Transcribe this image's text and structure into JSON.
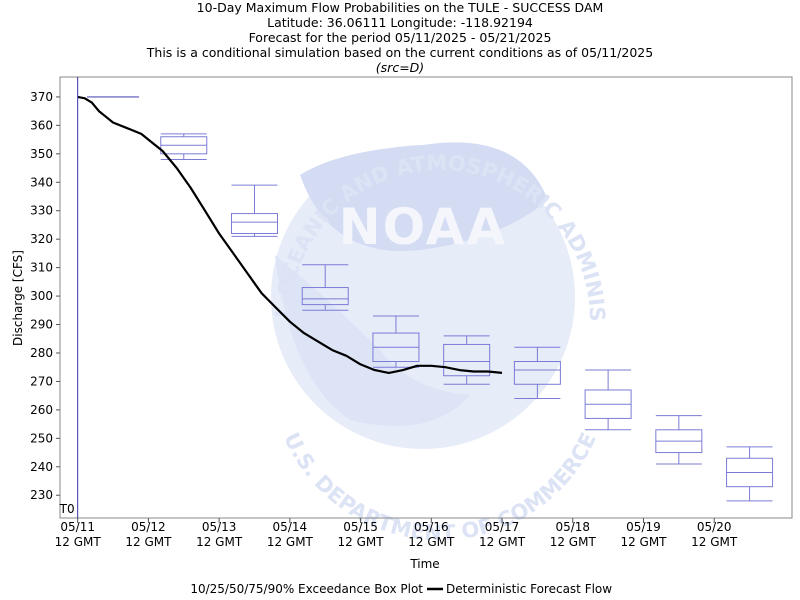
{
  "titles": {
    "line1": "10-Day Maximum Flow Probabilities on the TULE - SUCCESS DAM",
    "line2": "Latitude: 36.06111 Longitude: -118.92194",
    "line3": "Forecast for the period 05/11/2025 - 05/21/2025",
    "line4": "This is a conditional simulation based on the current conditions as of 05/11/2025",
    "line5": "(src=D)"
  },
  "watermark": {
    "logo_text": "NOAA",
    "top_arc": "NATIONAL OCEANIC AND ATMOSPHERIC ADMINISTRATION",
    "bottom_arc": "U.S. DEPARTMENT OF COMMERCE"
  },
  "colors": {
    "box": "#7b7bd6",
    "line": "#000000",
    "t0_line": "#3333aa",
    "watermark_light": "#e6ecf8",
    "watermark_mid": "#d2daf3"
  },
  "chart_data": {
    "type": "box",
    "xlabel": "Time",
    "ylabel": "Discharge [CFS]",
    "ylim": [
      222,
      377
    ],
    "yticks": [
      230,
      240,
      250,
      260,
      270,
      280,
      290,
      300,
      310,
      320,
      330,
      340,
      350,
      360,
      370
    ],
    "xlim": [
      -0.25,
      10.1
    ],
    "xtick_values": [
      0,
      1,
      2,
      3,
      4,
      5,
      6,
      7,
      8,
      9
    ],
    "xticks": [
      [
        "05/11",
        "12 GMT"
      ],
      [
        "05/12",
        "12 GMT"
      ],
      [
        "05/13",
        "12 GMT"
      ],
      [
        "05/14",
        "12 GMT"
      ],
      [
        "05/15",
        "12 GMT"
      ],
      [
        "05/16",
        "12 GMT"
      ],
      [
        "05/17",
        "12 GMT"
      ],
      [
        "05/18",
        "12 GMT"
      ],
      [
        "05/19",
        "12 GMT"
      ],
      [
        "05/20",
        "12 GMT"
      ]
    ],
    "t0_label": "T0",
    "t0_x": 0,
    "boxes": [
      {
        "x": 0.5,
        "p10": 370,
        "p25": 370,
        "p50": 370,
        "p75": 370,
        "p90": 370
      },
      {
        "x": 1.5,
        "p10": 348,
        "p25": 350,
        "p50": 353,
        "p75": 356,
        "p90": 357
      },
      {
        "x": 2.5,
        "p10": 321,
        "p25": 322,
        "p50": 326,
        "p75": 329,
        "p90": 339
      },
      {
        "x": 3.5,
        "p10": 295,
        "p25": 297,
        "p50": 299,
        "p75": 303,
        "p90": 311
      },
      {
        "x": 4.5,
        "p10": 275,
        "p25": 277,
        "p50": 282,
        "p75": 287,
        "p90": 293
      },
      {
        "x": 5.5,
        "p10": 269,
        "p25": 272,
        "p50": 277,
        "p75": 283,
        "p90": 286
      },
      {
        "x": 6.5,
        "p10": 264,
        "p25": 269,
        "p50": 274,
        "p75": 277,
        "p90": 282
      },
      {
        "x": 7.5,
        "p10": 253,
        "p25": 257,
        "p50": 262,
        "p75": 267,
        "p90": 274
      },
      {
        "x": 8.5,
        "p10": 241,
        "p25": 245,
        "p50": 249,
        "p75": 253,
        "p90": 258
      },
      {
        "x": 9.5,
        "p10": 228,
        "p25": 233,
        "p50": 238,
        "p75": 243,
        "p90": 247
      }
    ],
    "deterministic": {
      "x": [
        0.0,
        0.1,
        0.2,
        0.3,
        0.4,
        0.5,
        0.7,
        0.9,
        1.0,
        1.2,
        1.4,
        1.6,
        1.8,
        2.0,
        2.2,
        2.4,
        2.6,
        2.8,
        3.0,
        3.2,
        3.4,
        3.6,
        3.8,
        4.0,
        4.2,
        4.4,
        4.6,
        4.8,
        5.0,
        5.2,
        5.4,
        5.6,
        5.8,
        6.0
      ],
      "y": [
        370,
        369.5,
        368,
        365,
        363,
        361,
        359,
        357,
        355,
        351,
        345,
        338,
        330,
        322,
        315,
        308,
        301,
        296,
        291,
        287,
        284,
        281,
        279,
        276,
        274,
        273,
        274,
        275.5,
        275.5,
        275,
        274,
        273.5,
        273.5,
        273
      ]
    },
    "legend": {
      "box_label": "10/25/50/75/90% Exceedance Box Plot",
      "line_label": "Deterministic Forecast Flow"
    }
  }
}
